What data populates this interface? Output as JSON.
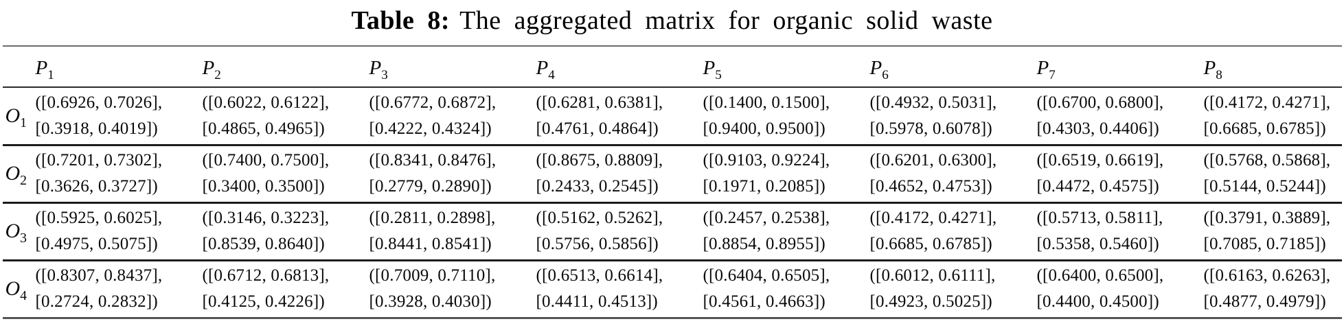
{
  "title": {
    "label": "Table 8:",
    "text": "The aggregated matrix for organic solid waste"
  },
  "columns": [
    {
      "base": "P",
      "sub": "1"
    },
    {
      "base": "P",
      "sub": "2"
    },
    {
      "base": "P",
      "sub": "3"
    },
    {
      "base": "P",
      "sub": "4"
    },
    {
      "base": "P",
      "sub": "5"
    },
    {
      "base": "P",
      "sub": "6"
    },
    {
      "base": "P",
      "sub": "7"
    },
    {
      "base": "P",
      "sub": "8"
    }
  ],
  "rows": [
    {
      "label": {
        "base": "O",
        "sub": "1"
      },
      "cells": [
        {
          "line1": "([0.6926, 0.7026],",
          "line2": "[0.3918, 0.4019])"
        },
        {
          "line1": "([0.6022, 0.6122],",
          "line2": "[0.4865, 0.4965])"
        },
        {
          "line1": "([0.6772, 0.6872],",
          "line2": "[0.4222, 0.4324])"
        },
        {
          "line1": "([0.6281, 0.6381],",
          "line2": "[0.4761, 0.4864])"
        },
        {
          "line1": "([0.1400, 0.1500],",
          "line2": "[0.9400, 0.9500])"
        },
        {
          "line1": "([0.4932, 0.5031],",
          "line2": "[0.5978, 0.6078])"
        },
        {
          "line1": "([0.6700, 0.6800],",
          "line2": "[0.4303, 0.4406])"
        },
        {
          "line1": "([0.4172, 0.4271],",
          "line2": "[0.6685, 0.6785])"
        }
      ]
    },
    {
      "label": {
        "base": "O",
        "sub": "2"
      },
      "cells": [
        {
          "line1": "([0.7201, 0.7302],",
          "line2": "[0.3626, 0.3727])"
        },
        {
          "line1": "([0.7400, 0.7500],",
          "line2": "[0.3400, 0.3500])"
        },
        {
          "line1": "([0.8341, 0.8476],",
          "line2": "[0.2779, 0.2890])"
        },
        {
          "line1": "([0.8675, 0.8809],",
          "line2": "[0.2433, 0.2545])"
        },
        {
          "line1": "([0.9103, 0.9224],",
          "line2": "[0.1971, 0.2085])"
        },
        {
          "line1": "([0.6201, 0.6300],",
          "line2": "[0.4652, 0.4753])"
        },
        {
          "line1": "([0.6519, 0.6619],",
          "line2": "[0.4472, 0.4575])"
        },
        {
          "line1": "([0.5768, 0.5868],",
          "line2": "[0.5144, 0.5244])"
        }
      ]
    },
    {
      "label": {
        "base": "O",
        "sub": "3"
      },
      "cells": [
        {
          "line1": "([0.5925, 0.6025],",
          "line2": "[0.4975, 0.5075])"
        },
        {
          "line1": "([0.3146, 0.3223],",
          "line2": "[0.8539, 0.8640])"
        },
        {
          "line1": "([0.2811, 0.2898],",
          "line2": "[0.8441, 0.8541])"
        },
        {
          "line1": "([0.5162, 0.5262],",
          "line2": "[0.5756, 0.5856])"
        },
        {
          "line1": "([0.2457, 0.2538],",
          "line2": "[0.8854, 0.8955])"
        },
        {
          "line1": "([0.4172, 0.4271],",
          "line2": "[0.6685, 0.6785])"
        },
        {
          "line1": "([0.5713, 0.5811],",
          "line2": "[0.5358, 0.5460])"
        },
        {
          "line1": "([0.3791, 0.3889],",
          "line2": "[0.7085, 0.7185])"
        }
      ]
    },
    {
      "label": {
        "base": "O",
        "sub": "4"
      },
      "cells": [
        {
          "line1": "([0.8307, 0.8437],",
          "line2": "[0.2724, 0.2832])"
        },
        {
          "line1": "([0.6712, 0.6813],",
          "line2": "[0.4125, 0.4226])"
        },
        {
          "line1": "([0.7009, 0.7110],",
          "line2": "[0.3928, 0.4030])"
        },
        {
          "line1": "([0.6513, 0.6614],",
          "line2": "[0.4411, 0.4513])"
        },
        {
          "line1": "([0.6404, 0.6505],",
          "line2": "[0.4561, 0.4663])"
        },
        {
          "line1": "([0.6012, 0.6111],",
          "line2": "[0.4923, 0.5025])"
        },
        {
          "line1": "([0.6400, 0.6500],",
          "line2": "[0.4400, 0.4500])"
        },
        {
          "line1": "([0.6163, 0.6263],",
          "line2": "[0.4877, 0.4979])"
        }
      ]
    }
  ]
}
